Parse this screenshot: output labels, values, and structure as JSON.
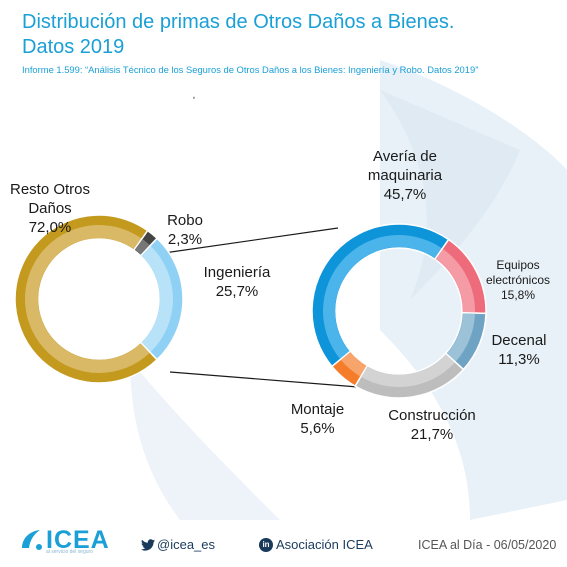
{
  "header": {
    "title_line1": "Distribución de primas de Otros Daños a Bienes.",
    "title_line2": "Datos 2019",
    "subtitle": "Informe 1.599: “Análisis Técnico de los Seguros de Otros Daños a los Bienes: Ingeniería y Robo. Datos 2019”",
    "stray_mark": "ʹ"
  },
  "chart_data": [
    {
      "type": "pie",
      "variant": "donut",
      "categories": [
        "Ingeniería",
        "Resto Otros Daños",
        "Robo"
      ],
      "values": [
        25.7,
        72.0,
        2.3
      ],
      "value_labels": [
        "25,7%",
        "72,0%",
        "2,3%"
      ],
      "colors": [
        "#8fd0f5",
        "#c49a1e",
        "#444444"
      ],
      "inner_colors": [
        "#b8e2f8",
        "#d9b866",
        "#777777"
      ]
    },
    {
      "type": "pie",
      "variant": "donut",
      "categories": [
        "Avería de maquinaria",
        "Equipos electrónicos",
        "Decenal",
        "Construcción",
        "Montaje"
      ],
      "values": [
        45.7,
        15.8,
        11.3,
        21.7,
        5.6
      ],
      "value_labels": [
        "45,7%",
        "15,8%",
        "11,3%",
        "21,7%",
        "5,6%"
      ],
      "colors": [
        "#0d94d9",
        "#ee6b7b",
        "#6fa3c3",
        "#bdbdbd",
        "#f47c2a"
      ],
      "inner_colors": [
        "#4bb4ea",
        "#f49ba6",
        "#9cc2d8",
        "#d3d3d3",
        "#f7a56b"
      ]
    }
  ],
  "labels": {
    "resto_line1": "Resto Otros",
    "resto_line2": "Daños",
    "resto_value": "72,0%",
    "robo_name": "Robo",
    "robo_value": "2,3%",
    "ing_name": "Ingeniería",
    "ing_value": "25,7%",
    "averia_line1": "Avería de",
    "averia_line2": "maquinaria",
    "averia_value": "45,7%",
    "equipos_line1": "Equipos",
    "equipos_line2": "electrónicos",
    "equipos_value": "15,8%",
    "decenal_name": "Decenal",
    "decenal_value": "11,3%",
    "construccion_name": "Construcción",
    "construccion_value": "21,7%",
    "montaje_name": "Montaje",
    "montaje_value": "5,6%"
  },
  "footer": {
    "logo": "ICEA",
    "logo_tagline": "al servicio del seguro",
    "twitter": "@icea_es",
    "linkedin_icon": "in",
    "linkedin": "Asociación ICEA",
    "date": "ICEA al Día - 06/05/2020"
  },
  "icons": [
    "icea-logo-icon",
    "twitter-icon",
    "linkedin-icon"
  ],
  "colors": {
    "accent": "#1a9fd6",
    "footer_text": "#1a3a5c"
  }
}
